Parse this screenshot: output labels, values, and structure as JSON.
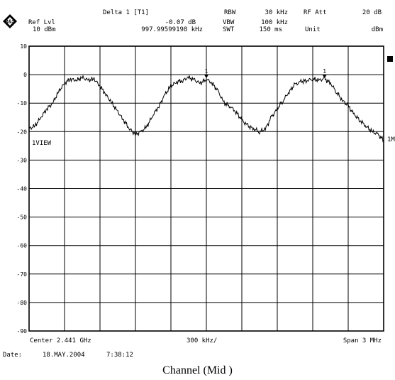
{
  "header": {
    "logo_text": "R&S",
    "ref_lvl_label": "Ref Lvl",
    "ref_lvl_value": "10 dBm",
    "delta_label": "Delta 1 [T1]",
    "delta_db": "-0.07 dB",
    "delta_freq": "997.99599198 kHz",
    "rbw_label": "RBW",
    "rbw_value": "30 kHz",
    "vbw_label": "VBW",
    "vbw_value": "100 kHz",
    "swt_label": "SWT",
    "swt_value": "150 ms",
    "rf_att_label": "RF Att",
    "rf_att_value": "20 dB",
    "unit_label": "Unit",
    "unit_value": "dBm"
  },
  "trace_label": "1VIEW",
  "right_marker": "1M",
  "footer": {
    "center": "Center 2.441 GHz",
    "div": "300 kHz/",
    "span": "Span 3 MHz",
    "date_label": "Date:",
    "date_value": "18.MAY.2004",
    "time_value": "7:38:12"
  },
  "caption": "Channel (Mid )",
  "chart_data": {
    "type": "line",
    "xlim": [
      2439.5,
      2442.5
    ],
    "x_unit": "MHz",
    "ylim": [
      -90,
      10
    ],
    "y_unit": "dBm",
    "ytick_labels": [
      "10",
      "0",
      "-10",
      "-20",
      "-30",
      "-40",
      "-50",
      "-60",
      "-70",
      "-80",
      "-90"
    ],
    "grid": true,
    "series": [
      {
        "x": [
          2439.5,
          2439.55,
          2439.6,
          2439.65,
          2439.7,
          2439.75,
          2439.8,
          2439.85,
          2439.9,
          2439.95,
          2440.0,
          2440.05,
          2440.1,
          2440.15,
          2440.2,
          2440.25,
          2440.3,
          2440.35,
          2440.4,
          2440.45,
          2440.5,
          2440.55,
          2440.6,
          2440.65,
          2440.7,
          2440.75,
          2440.8,
          2440.85,
          2440.9,
          2440.95,
          2441.0,
          2441.05,
          2441.1,
          2441.15,
          2441.2,
          2441.25,
          2441.3,
          2441.35,
          2441.4,
          2441.45,
          2441.5,
          2441.55,
          2441.6,
          2441.65,
          2441.7,
          2441.75,
          2441.8,
          2441.85,
          2441.9,
          2441.95,
          2442.0,
          2442.05,
          2442.1,
          2442.15,
          2442.2,
          2442.25,
          2442.3,
          2442.35,
          2442.4,
          2442.45,
          2442.5
        ],
        "y": [
          -19,
          -18,
          -15,
          -12,
          -10,
          -6,
          -3,
          -1.5,
          -2,
          -1,
          -2,
          -1.5,
          -4,
          -7,
          -10,
          -13,
          -16,
          -19,
          -21,
          -20,
          -18,
          -14,
          -11,
          -7,
          -4,
          -2.5,
          -2,
          -1,
          -2,
          -3,
          -1.5,
          -3,
          -6,
          -10,
          -11,
          -13,
          -16,
          -18,
          -19,
          -20,
          -19,
          -15,
          -12,
          -9,
          -6,
          -3.5,
          -2.5,
          -2,
          -1.5,
          -2,
          -1.5,
          -3,
          -6,
          -9,
          -11,
          -14,
          -16,
          -18,
          -20,
          -21,
          -23
        ]
      }
    ],
    "markers": [
      {
        "label": "1",
        "x": 2441.0,
        "y": -1.5
      },
      {
        "label": "1",
        "x": 2442.0,
        "y": -1.5
      }
    ]
  }
}
